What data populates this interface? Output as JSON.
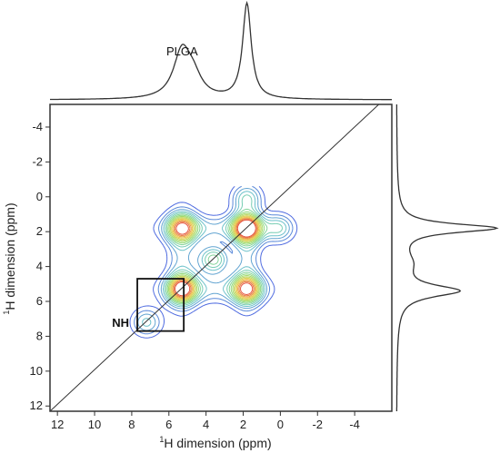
{
  "chart_data": {
    "type": "contour",
    "xlabel_sup": "1",
    "xlabel_rest": "H dimension (ppm)",
    "ylabel_sup": "1",
    "ylabel_rest": "H dimension (ppm)",
    "xlim": [
      12.4,
      -6.0
    ],
    "ylim": [
      -5.3,
      12.3
    ],
    "x_ticks": [
      12,
      10,
      8,
      6,
      4,
      2,
      0,
      -2,
      -4
    ],
    "y_ticks": [
      -4,
      -2,
      0,
      2,
      4,
      6,
      8,
      10,
      12
    ],
    "diagonal": true,
    "peak_label": "PLGA",
    "nh_label": "NH",
    "nh_box": {
      "x": [
        7.7,
        5.2
      ],
      "y": [
        4.7,
        7.7
      ]
    },
    "colors": {
      "outer": "#4f6be0",
      "inner": "#e5533d",
      "frame": "#333333"
    },
    "proj_top": {
      "baseline": 0.0,
      "peaks": [
        {
          "ppm": 1.8,
          "height": 1.0
        },
        {
          "ppm": 5.3,
          "height": 0.48
        },
        {
          "ppm": 4.7,
          "height": 0.2
        }
      ]
    },
    "proj_right": {
      "baseline": 0.0,
      "peaks": [
        {
          "ppm": 1.8,
          "height": 1.0
        },
        {
          "ppm": 5.4,
          "height": 0.62
        },
        {
          "ppm": 3.8,
          "height": 0.12
        }
      ]
    },
    "peaks2d": [
      {
        "x": 1.8,
        "y": 1.8,
        "amp": 1.0
      },
      {
        "x": 5.3,
        "y": 1.8,
        "amp": 0.78
      },
      {
        "x": 1.8,
        "y": 5.3,
        "amp": 0.78
      },
      {
        "x": 5.3,
        "y": 5.3,
        "amp": 0.85
      },
      {
        "x": 0.1,
        "y": 1.8,
        "amp": 0.32
      },
      {
        "x": 1.8,
        "y": 0.1,
        "amp": 0.32
      },
      {
        "x": 7.2,
        "y": 7.2,
        "amp": 0.3
      },
      {
        "x": 3.6,
        "y": 3.6,
        "amp": 0.45
      }
    ],
    "levels": 14
  }
}
